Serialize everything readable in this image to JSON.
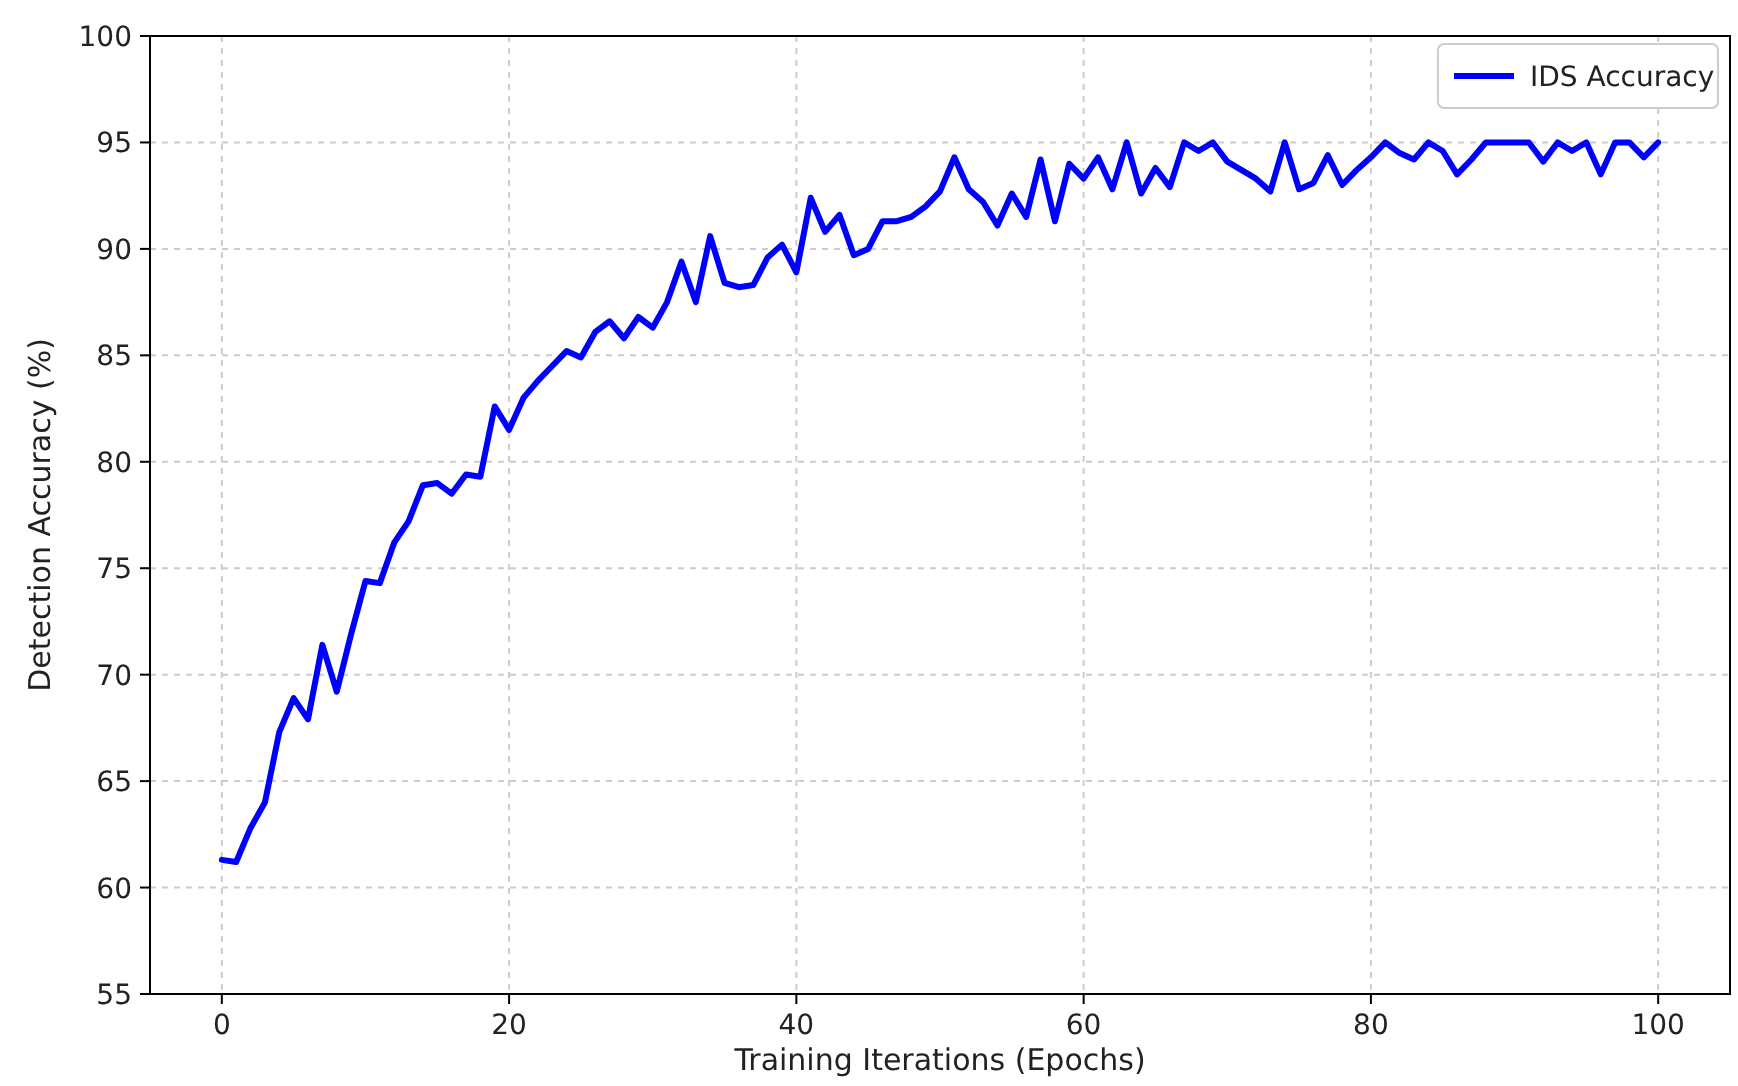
{
  "chart_data": {
    "type": "line",
    "xlabel": "Training Iterations (Epochs)",
    "ylabel": "Detection Accuracy (%)",
    "x": [
      0,
      1,
      2,
      3,
      4,
      5,
      6,
      7,
      8,
      9,
      10,
      11,
      12,
      13,
      14,
      15,
      16,
      17,
      18,
      19,
      20,
      21,
      22,
      23,
      24,
      25,
      26,
      27,
      28,
      29,
      30,
      31,
      32,
      33,
      34,
      35,
      36,
      37,
      38,
      39,
      40,
      41,
      42,
      43,
      44,
      45,
      46,
      47,
      48,
      49,
      50,
      51,
      52,
      53,
      54,
      55,
      56,
      57,
      58,
      59,
      60,
      61,
      62,
      63,
      64,
      65,
      66,
      67,
      68,
      69,
      70,
      71,
      72,
      73,
      74,
      75,
      76,
      77,
      78,
      79,
      80,
      81,
      82,
      83,
      84,
      85,
      86,
      87,
      88,
      89,
      90,
      91,
      92,
      93,
      94,
      95,
      96,
      97,
      98,
      99,
      100
    ],
    "series": [
      {
        "name": "IDS Accuracy",
        "color": "#0000ff",
        "values": [
          61.3,
          61.2,
          62.8,
          64,
          67.3,
          68.9,
          67.9,
          71.4,
          69.2,
          71.9,
          74.4,
          74.3,
          76.2,
          77.2,
          78.9,
          79,
          78.5,
          79.4,
          79.3,
          82.6,
          81.5,
          83,
          83.8,
          84.5,
          85.2,
          84.9,
          86.1,
          86.6,
          85.8,
          86.8,
          86.3,
          87.5,
          89.4,
          87.5,
          90.6,
          88.4,
          88.2,
          88.3,
          89.6,
          90.2,
          88.9,
          92.4,
          90.8,
          91.6,
          89.7,
          90,
          91.3,
          91.3,
          91.5,
          92,
          92.7,
          94.3,
          92.8,
          92.2,
          91.1,
          92.6,
          91.5,
          94.2,
          91.3,
          94,
          93.3,
          94.3,
          92.8,
          95,
          92.6,
          93.8,
          92.9,
          95,
          94.6,
          95,
          94.1,
          93.7,
          93.3,
          92.7,
          95,
          92.8,
          93.1,
          94.4,
          93,
          93.7,
          94.3,
          95,
          94.5,
          94.2,
          95,
          94.6,
          93.5,
          94.2,
          95,
          95,
          95,
          95,
          94.1,
          95,
          94.6,
          95,
          93.5,
          95,
          95,
          94.3,
          95
        ]
      }
    ],
    "xlim": [
      -5,
      105
    ],
    "ylim": [
      55,
      100
    ],
    "xticks": [
      0,
      20,
      40,
      60,
      80,
      100
    ],
    "yticks": [
      55,
      60,
      65,
      70,
      75,
      80,
      85,
      90,
      95,
      100
    ],
    "grid": true,
    "legend": "top right",
    "line_style": "solid"
  }
}
